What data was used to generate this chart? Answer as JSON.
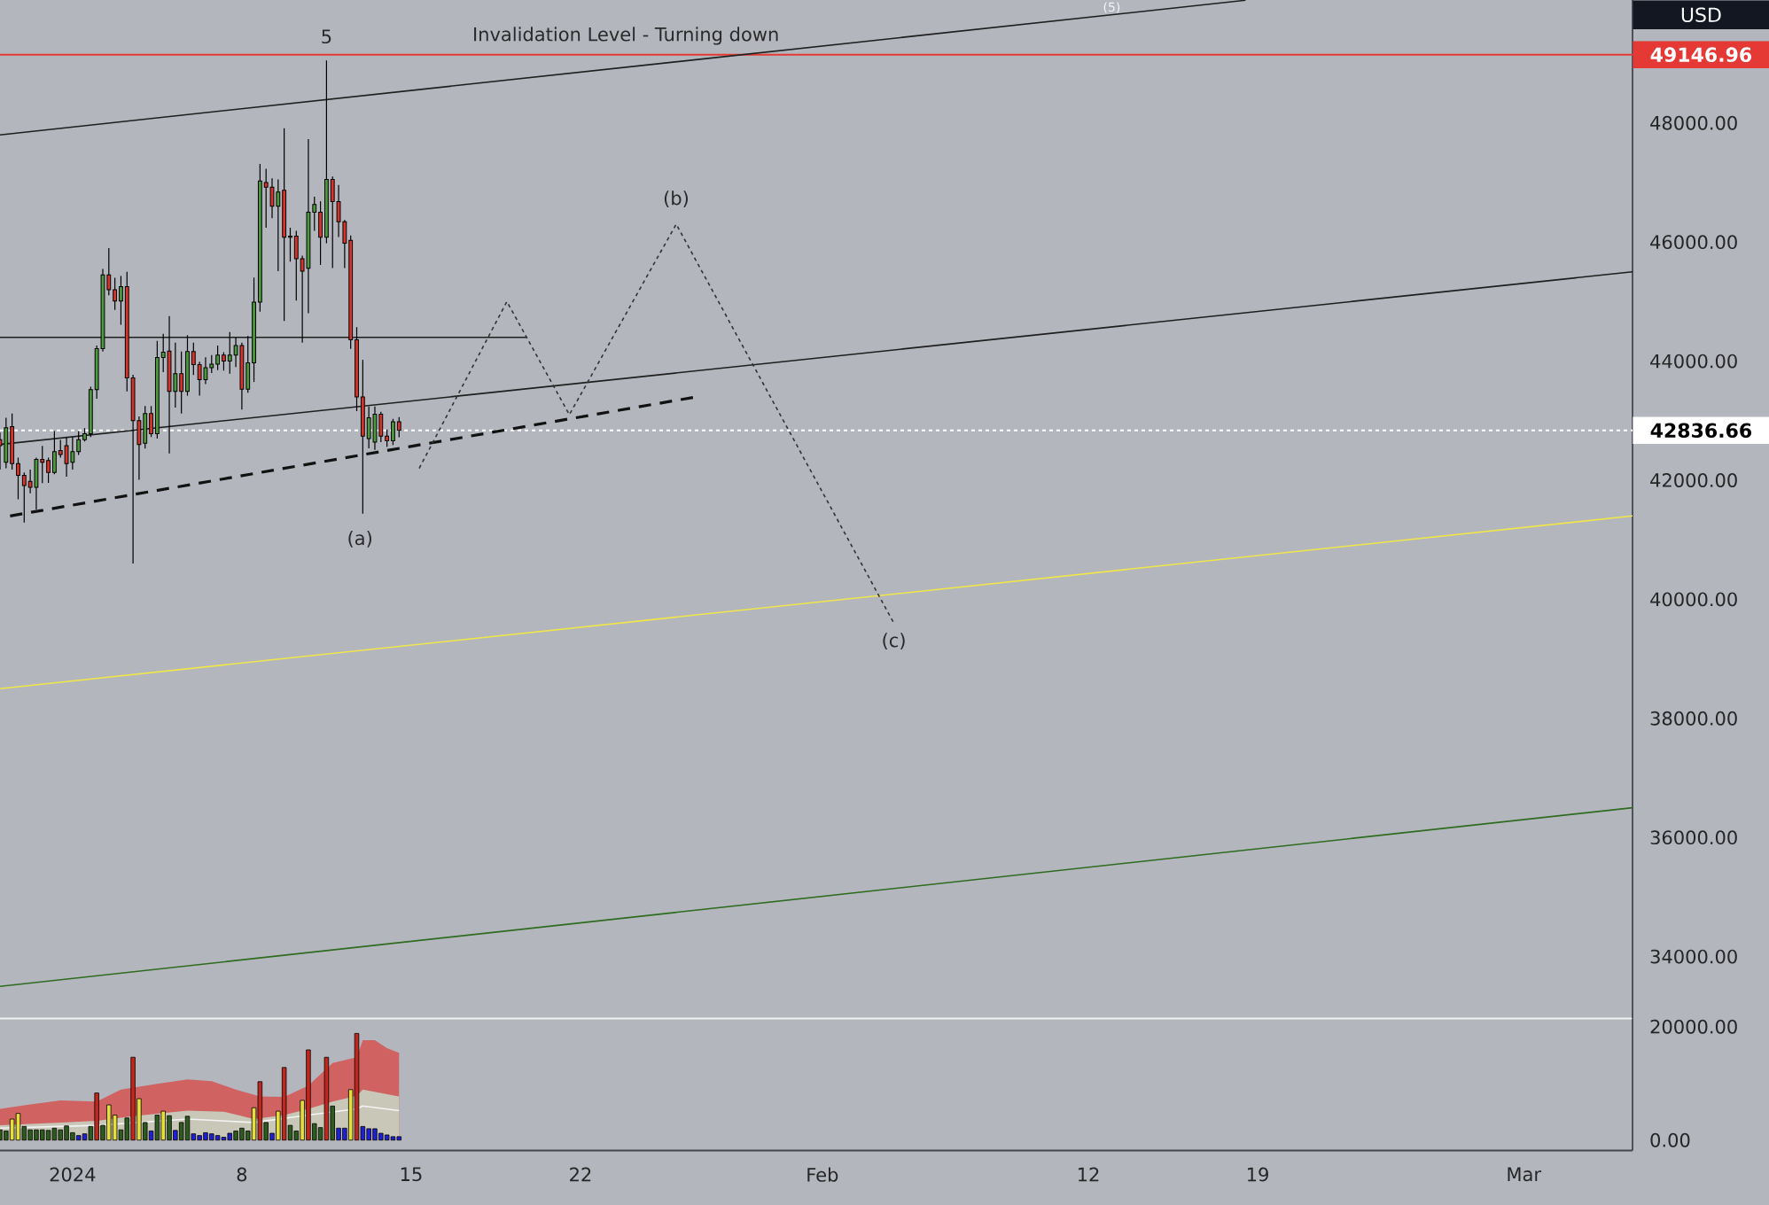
{
  "chart_data": [
    {
      "type": "candlestick",
      "xlim": [
        "2023-12-29T00:00",
        "2024-03-05T12:00"
      ],
      "ylim": [
        32960,
        50065
      ],
      "tick_labels": "y",
      "yticks": [
        {
          "value": 34000,
          "label": "34000.00"
        },
        {
          "value": 36000,
          "label": "36000.00"
        },
        {
          "value": 38000,
          "label": "38000.00"
        },
        {
          "value": 40000,
          "label": "40000.00"
        },
        {
          "value": 42000,
          "label": "42000.00"
        },
        {
          "value": 44000,
          "label": "44000.00"
        },
        {
          "value": 46000,
          "label": "46000.00"
        },
        {
          "value": 48000,
          "label": "48000.00"
        }
      ],
      "x": [
        "2023-12-29T00:00",
        "2023-12-29T06:00",
        "2023-12-29T12:00",
        "2023-12-29T18:00",
        "2023-12-30T00:00",
        "2023-12-30T06:00",
        "2023-12-30T12:00",
        "2023-12-30T18:00",
        "2023-12-31T00:00",
        "2023-12-31T06:00",
        "2023-12-31T12:00",
        "2023-12-31T18:00",
        "2024-01-01T00:00",
        "2024-01-01T06:00",
        "2024-01-01T12:00",
        "2024-01-01T18:00",
        "2024-01-02T00:00",
        "2024-01-02T06:00",
        "2024-01-02T12:00",
        "2024-01-02T18:00",
        "2024-01-03T00:00",
        "2024-01-03T06:00",
        "2024-01-03T12:00",
        "2024-01-03T18:00",
        "2024-01-04T00:00",
        "2024-01-04T06:00",
        "2024-01-04T12:00",
        "2024-01-04T18:00",
        "2024-01-05T00:00",
        "2024-01-05T06:00",
        "2024-01-05T12:00",
        "2024-01-05T18:00",
        "2024-01-06T00:00",
        "2024-01-06T06:00",
        "2024-01-06T12:00",
        "2024-01-06T18:00",
        "2024-01-07T00:00",
        "2024-01-07T06:00",
        "2024-01-07T12:00",
        "2024-01-07T18:00",
        "2024-01-08T00:00",
        "2024-01-08T06:00",
        "2024-01-08T12:00",
        "2024-01-08T18:00",
        "2024-01-09T00:00",
        "2024-01-09T06:00",
        "2024-01-09T12:00",
        "2024-01-09T18:00",
        "2024-01-10T00:00",
        "2024-01-10T06:00",
        "2024-01-10T12:00",
        "2024-01-10T18:00",
        "2024-01-11T00:00",
        "2024-01-11T06:00",
        "2024-01-11T12:00",
        "2024-01-11T18:00",
        "2024-01-12T00:00",
        "2024-01-12T06:00",
        "2024-01-12T12:00",
        "2024-01-12T18:00",
        "2024-01-13T00:00",
        "2024-01-13T06:00",
        "2024-01-13T12:00",
        "2024-01-13T18:00",
        "2024-01-14T00:00",
        "2024-01-14T06:00",
        "2024-01-14T12:00"
      ],
      "ohlc": [
        [
          42680,
          42800,
          42180,
          42580
        ],
        [
          42300,
          43050,
          42200,
          42880
        ],
        [
          42900,
          43120,
          42180,
          42280
        ],
        [
          42280,
          42380,
          41680,
          42080
        ],
        [
          42080,
          42130,
          41290,
          41910
        ],
        [
          41980,
          42180,
          41780,
          41880
        ],
        [
          41880,
          42380,
          41510,
          42350
        ],
        [
          42350,
          42575,
          41950,
          42300
        ],
        [
          42330,
          42380,
          41955,
          42130
        ],
        [
          42130,
          42824,
          42100,
          42480
        ],
        [
          42500,
          42675,
          42380,
          42430
        ],
        [
          42580,
          42725,
          42060,
          42280
        ],
        [
          42300,
          42725,
          42180,
          42480
        ],
        [
          42480,
          42824,
          42425,
          42680
        ],
        [
          42680,
          42875,
          42650,
          42780
        ],
        [
          42780,
          43570,
          42725,
          43520
        ],
        [
          43520,
          44260,
          43370,
          44210
        ],
        [
          44210,
          45550,
          44160,
          45450
        ],
        [
          45450,
          45900,
          45105,
          45200
        ],
        [
          45200,
          45400,
          44860,
          45010
        ],
        [
          45010,
          45430,
          44610,
          45250
        ],
        [
          45250,
          45500,
          43490,
          43720
        ],
        [
          43720,
          43770,
          40600,
          43000
        ],
        [
          43000,
          43070,
          42006,
          42600
        ],
        [
          42620,
          43245,
          42530,
          43120
        ],
        [
          43120,
          43245,
          42725,
          42780
        ],
        [
          42780,
          44340,
          42700,
          44060
        ],
        [
          44060,
          44460,
          43815,
          44150
        ],
        [
          44170,
          44758,
          42450,
          43490
        ],
        [
          43490,
          44310,
          43220,
          43790
        ],
        [
          43790,
          44160,
          43120,
          43490
        ],
        [
          43490,
          44435,
          43420,
          44160
        ],
        [
          44160,
          44310,
          43765,
          43940
        ],
        [
          43940,
          43990,
          43420,
          43690
        ],
        [
          43690,
          44065,
          43615,
          43890
        ],
        [
          43890,
          44100,
          43800,
          43950
        ],
        [
          43950,
          44260,
          43850,
          44100
        ],
        [
          44100,
          44150,
          43840,
          44000
        ],
        [
          44000,
          44490,
          43790,
          44100
        ],
        [
          44100,
          44400,
          43900,
          44260
        ],
        [
          44260,
          44310,
          43186,
          43530
        ],
        [
          43530,
          44420,
          43470,
          43970
        ],
        [
          43970,
          45405,
          43650,
          44990
        ],
        [
          44990,
          47311,
          44830,
          47024
        ],
        [
          47000,
          47230,
          46241,
          46920
        ],
        [
          46920,
          47070,
          46400,
          46600
        ],
        [
          46600,
          47050,
          45510,
          46840
        ],
        [
          46870,
          47911,
          44674,
          46080
        ],
        [
          46080,
          46240,
          45670,
          46100
        ],
        [
          46100,
          46190,
          45015,
          45720
        ],
        [
          45720,
          45770,
          44309,
          45510
        ],
        [
          45560,
          47729,
          44805,
          46500
        ],
        [
          46500,
          46760,
          46190,
          46630
        ],
        [
          46500,
          46685,
          45615,
          46080
        ],
        [
          46080,
          49050,
          45980,
          47050
        ],
        [
          47050,
          47100,
          45562,
          46680
        ],
        [
          46680,
          46960,
          46085,
          46340
        ],
        [
          46340,
          46370,
          45562,
          45980
        ],
        [
          46030,
          46110,
          44205,
          44360
        ],
        [
          44360,
          44570,
          43160,
          43400
        ],
        [
          43400,
          44022,
          41437,
          42740
        ],
        [
          42700,
          43240,
          42535,
          43050
        ],
        [
          42640,
          43240,
          42510,
          43110
        ],
        [
          43110,
          43150,
          42640,
          42740
        ],
        [
          42740,
          42850,
          42560,
          42660
        ],
        [
          42660,
          43030,
          42590,
          42980
        ],
        [
          42980,
          43060,
          42720,
          42837
        ]
      ],
      "series": [
        {
          "type": "line",
          "color": "#1e1e1e",
          "x": [
            "2023-12-29T00:00",
            "2024-02-18T12:00"
          ],
          "values": [
            47800,
            50060
          ]
        },
        {
          "type": "line",
          "color": "#1e1e1e",
          "x": [
            "2023-12-29T00:00",
            "2024-03-05T12:00"
          ],
          "values": [
            42600,
            45500
          ]
        },
        {
          "type": "line",
          "color": "#f0e64a",
          "x": [
            "2023-12-29T00:00",
            "2024-03-05T12:00"
          ],
          "values": [
            38500,
            41400
          ]
        },
        {
          "type": "line",
          "color": "#2f6b1f",
          "x": [
            "2023-12-29T00:00",
            "2024-03-05T12:00"
          ],
          "values": [
            33500,
            36500
          ]
        },
        {
          "type": "line",
          "color": "#1e1e1e",
          "x": [
            "2023-12-29T00:00",
            "2024-01-19T19:00"
          ],
          "values": [
            44400,
            44400
          ]
        },
        {
          "type": "line",
          "color": "#111111",
          "line_style": "dashed",
          "x": [
            "2023-12-29T10:00",
            "2024-01-26T19:00"
          ],
          "values": [
            41400,
            43400
          ]
        },
        {
          "type": "line",
          "color": "#333333",
          "line_style": "dotted",
          "x": [
            "2024-01-15T08:00",
            "2024-01-18T23:00",
            "2024-01-21T13:00",
            "2024-01-25T23:00",
            "2024-02-03T23:00"
          ],
          "values": [
            42200,
            45000,
            43100,
            46300,
            39600
          ]
        }
      ],
      "ref_lines": [
        {
          "axis": "y",
          "value": 49146.96,
          "label": "49146.96",
          "color": "#e53935"
        },
        {
          "axis": "y",
          "value": 42836.66,
          "label": "42836.66",
          "color": "#ffffff",
          "line_style": "dotted"
        }
      ],
      "annotations": [
        "USD",
        {
          "text": "Invalidation Level - Turning down",
          "x": "2024-01-23T21:00",
          "y": 49146.96
        },
        {
          "text": "5",
          "x": "2024-01-11T12:00",
          "y": 49050
        },
        "(a)",
        {
          "text": "(b)",
          "x": "2024-01-25T23:00",
          "y": 46300
        },
        {
          "text": "(c)",
          "x": "2024-02-03T23:00",
          "y": 39600
        },
        "(5)"
      ]
    },
    {
      "type": "bar",
      "xlim": [
        "2023-12-29T00:00",
        "2024-03-05T12:00"
      ],
      "ylim": [
        -1840,
        21440
      ],
      "xticks": [
        {
          "value": "2024-01-01",
          "label": "2024"
        },
        {
          "value": "2024-01-08",
          "label": "8"
        },
        {
          "value": "2024-01-15",
          "label": "15"
        },
        {
          "value": "2024-01-22",
          "label": "22"
        },
        {
          "value": "2024-02-01",
          "label": "Feb"
        },
        {
          "value": "2024-02-12",
          "label": "12"
        },
        {
          "value": "2024-02-19",
          "label": "19"
        },
        {
          "value": "2024-03-01",
          "label": "Mar"
        }
      ],
      "yticks": [
        {
          "value": 0,
          "label": "0.00"
        },
        {
          "value": 20000,
          "label": "20000.00"
        }
      ],
      "x": [
        "2023-12-29T00:00",
        "2023-12-29T06:00",
        "2023-12-29T12:00",
        "2023-12-29T18:00",
        "2023-12-30T00:00",
        "2023-12-30T06:00",
        "2023-12-30T12:00",
        "2023-12-30T18:00",
        "2023-12-31T00:00",
        "2023-12-31T06:00",
        "2023-12-31T12:00",
        "2023-12-31T18:00",
        "2024-01-01T00:00",
        "2024-01-01T06:00",
        "2024-01-01T12:00",
        "2024-01-01T18:00",
        "2024-01-02T00:00",
        "2024-01-02T06:00",
        "2024-01-02T12:00",
        "2024-01-02T18:00",
        "2024-01-03T00:00",
        "2024-01-03T06:00",
        "2024-01-03T12:00",
        "2024-01-03T18:00",
        "2024-01-04T00:00",
        "2024-01-04T06:00",
        "2024-01-04T12:00",
        "2024-01-04T18:00",
        "2024-01-05T00:00",
        "2024-01-05T06:00",
        "2024-01-05T12:00",
        "2024-01-05T18:00",
        "2024-01-06T00:00",
        "2024-01-06T06:00",
        "2024-01-06T12:00",
        "2024-01-06T18:00",
        "2024-01-07T00:00",
        "2024-01-07T06:00",
        "2024-01-07T12:00",
        "2024-01-07T18:00",
        "2024-01-08T00:00",
        "2024-01-08T06:00",
        "2024-01-08T12:00",
        "2024-01-08T18:00",
        "2024-01-09T00:00",
        "2024-01-09T06:00",
        "2024-01-09T12:00",
        "2024-01-09T18:00",
        "2024-01-10T00:00",
        "2024-01-10T06:00",
        "2024-01-10T12:00",
        "2024-01-10T18:00",
        "2024-01-11T00:00",
        "2024-01-11T06:00",
        "2024-01-11T12:00",
        "2024-01-11T18:00",
        "2024-01-12T00:00",
        "2024-01-12T06:00",
        "2024-01-12T12:00",
        "2024-01-12T18:00",
        "2024-01-13T00:00",
        "2024-01-13T06:00",
        "2024-01-13T12:00",
        "2024-01-13T18:00",
        "2024-01-14T00:00",
        "2024-01-14T06:00",
        "2024-01-14T12:00"
      ],
      "series": [
        {
          "type": "area",
          "color": "#d06262",
          "x": [
            "2023-12-29T00:00",
            "2023-12-30T06:00",
            "2023-12-31T12:00",
            "2024-01-02T00:00",
            "2024-01-03T00:00",
            "2024-01-04T12:00",
            "2024-01-05T18:00",
            "2024-01-06T18:00",
            "2024-01-07T18:00",
            "2024-01-08T18:00",
            "2024-01-09T18:00",
            "2024-01-10T18:00",
            "2024-01-11T18:00",
            "2024-01-12T18:00",
            "2024-01-13T00:00",
            "2024-01-13T12:00",
            "2024-01-14T00:00",
            "2024-01-14T12:00"
          ],
          "values": [
            5500,
            6300,
            7000,
            6800,
            8900,
            9900,
            10700,
            10400,
            8900,
            7700,
            7600,
            9600,
            13600,
            14600,
            17600,
            17600,
            16200,
            15400
          ]
        },
        {
          "type": "area",
          "color": "#c8c7b8",
          "x": [
            "2023-12-29T00:00",
            "2023-12-31T12:00",
            "2024-01-02T00:00",
            "2024-01-03T12:00",
            "2024-01-05T18:00",
            "2024-01-07T06:00",
            "2024-01-08T12:00",
            "2024-01-09T18:00",
            "2024-01-10T18:00",
            "2024-01-11T18:00",
            "2024-01-12T18:00",
            "2024-01-13T00:00",
            "2024-01-14T12:00"
          ],
          "values": [
            2600,
            3100,
            3400,
            4200,
            5200,
            5000,
            3700,
            4400,
            5500,
            6800,
            7800,
            8900,
            7700
          ]
        },
        {
          "type": "line",
          "color": "#f4f4f4",
          "x": [
            "2023-12-29T00:00",
            "2024-01-02T00:00",
            "2024-01-05T18:00",
            "2024-01-08T12:00",
            "2024-01-10T18:00",
            "2024-01-12T18:00",
            "2024-01-13T00:00",
            "2024-01-14T12:00"
          ],
          "values": [
            2100,
            2600,
            3700,
            3100,
            4400,
            5500,
            6000,
            5200
          ]
        },
        {
          "type": "bar",
          "values": [
            1800,
            1600,
            3700,
            4700,
            2400,
            1800,
            1800,
            1800,
            1700,
            2100,
            1800,
            2500,
            1300,
            800,
            1100,
            2400,
            8300,
            2600,
            6200,
            4400,
            1800,
            3900,
            14600,
            7300,
            3100,
            1600,
            4400,
            5100,
            4300,
            1700,
            3100,
            4200,
            1100,
            800,
            1300,
            1100,
            800,
            500,
            1200,
            1600,
            2100,
            1600,
            5700,
            10300,
            3100,
            1200,
            5100,
            12800,
            2600,
            1600,
            7000,
            15900,
            2900,
            2200,
            14600,
            6000,
            2100,
            2100,
            8900,
            18800,
            2400,
            2000,
            2000,
            1200,
            900,
            600,
            600
          ],
          "colors": [
            "#2d5a1e",
            "#2d5a1e",
            "#e6de3c",
            "#e6de3c",
            "#2d5a1e",
            "#2d5a1e",
            "#2d5a1e",
            "#2d5a1e",
            "#2d5a1e",
            "#2d5a1e",
            "#2d5a1e",
            "#2d5a1e",
            "#2d5a1e",
            "#1f1fd6",
            "#1f1fd6",
            "#2d5a1e",
            "#c0281e",
            "#2d5a1e",
            "#e6de3c",
            "#e6de3c",
            "#2d5a1e",
            "#2d5a1e",
            "#c0281e",
            "#e6de3c",
            "#2d5a1e",
            "#1f1fd6",
            "#2d5a1e",
            "#e6de3c",
            "#2d5a1e",
            "#1f1fd6",
            "#2d5a1e",
            "#2d5a1e",
            "#1f1fd6",
            "#1f1fd6",
            "#1f1fd6",
            "#1f1fd6",
            "#1f1fd6",
            "#1f1fd6",
            "#1f1fd6",
            "#2d5a1e",
            "#2d5a1e",
            "#2d5a1e",
            "#e6de3c",
            "#c0281e",
            "#2d5a1e",
            "#1f1fd6",
            "#e6de3c",
            "#c0281e",
            "#2d5a1e",
            "#2d5a1e",
            "#e6de3c",
            "#c0281e",
            "#2d5a1e",
            "#2d5a1e",
            "#c0281e",
            "#2d5a1e",
            "#1f1fd6",
            "#1f1fd6",
            "#e6de3c",
            "#c0281e",
            "#1f1fd6",
            "#1f1fd6",
            "#1f1fd6",
            "#1f1fd6",
            "#1f1fd6",
            "#1f1fd6",
            "#1f1fd6"
          ]
        }
      ]
    }
  ]
}
